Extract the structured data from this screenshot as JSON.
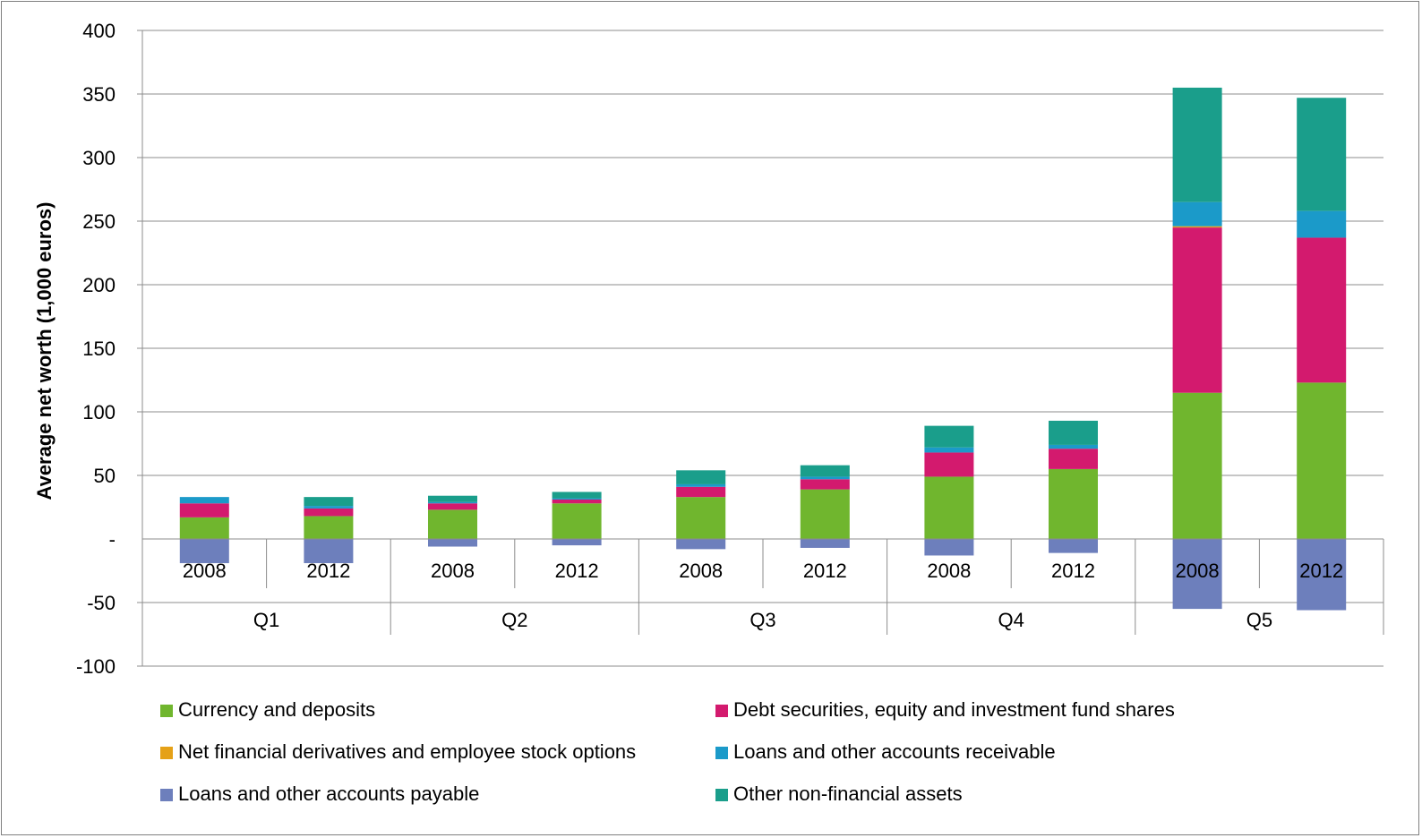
{
  "chart_data": {
    "type": "bar",
    "stacked": true,
    "title": "",
    "xlabel": "",
    "ylabel": "Average net worth (1,000 euros)",
    "ylim": [
      -100,
      400
    ],
    "yticks": [
      400,
      350,
      300,
      250,
      200,
      150,
      100,
      50,
      0,
      -50,
      -100
    ],
    "ytick_labels": [
      "400",
      "350",
      "300",
      "250",
      "200",
      "150",
      "100",
      "50",
      "-",
      "-50",
      "-100"
    ],
    "grid": true,
    "legend_position": "bottom",
    "groups": [
      "Q1",
      "Q2",
      "Q3",
      "Q4",
      "Q5"
    ],
    "categories": [
      "2008",
      "2012",
      "2008",
      "2012",
      "2008",
      "2012",
      "2008",
      "2012",
      "2008",
      "2012"
    ],
    "series": [
      {
        "name": "Currency and deposits",
        "color": "#70b62e",
        "values": [
          17,
          18,
          23,
          28,
          33,
          39,
          49,
          55,
          115,
          123
        ]
      },
      {
        "name": "Debt securities, equity and investment fund shares",
        "color": "#d31a6e",
        "values": [
          11,
          6,
          5,
          3,
          8,
          8,
          19,
          16,
          130,
          114
        ]
      },
      {
        "name": "Net financial derivatives and employee stock options",
        "color": "#e5a117",
        "values": [
          0,
          0,
          0,
          0,
          0,
          0,
          0,
          0,
          1,
          0
        ]
      },
      {
        "name": "Loans and other accounts receivable",
        "color": "#1b9ac9",
        "values": [
          5,
          2,
          1,
          1,
          2,
          2,
          4,
          3,
          19,
          21
        ]
      },
      {
        "name": "Loans and other accounts payable",
        "color": "#6d7fbc",
        "values": [
          -19,
          -19,
          -6,
          -5,
          -8,
          -7,
          -13,
          -11,
          -55,
          -56
        ]
      },
      {
        "name": "Other non-financial assets",
        "color": "#1a9e8b",
        "values": [
          0,
          7,
          5,
          5,
          11,
          9,
          17,
          19,
          90,
          89
        ]
      }
    ]
  }
}
